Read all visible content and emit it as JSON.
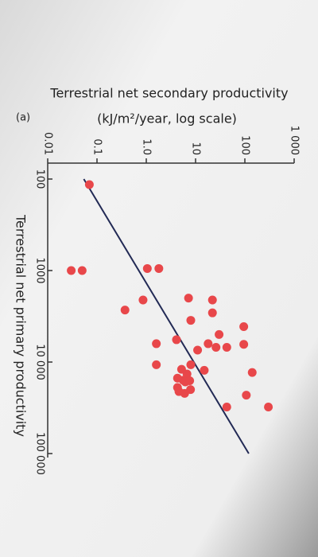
{
  "chart_data": {
    "type": "scatter",
    "panel_label": "(a)",
    "title": "Terrestrial net secondary productivity",
    "subtitle": "(kJ/m²/year, log scale)",
    "x_label": "Terrestrial net primary productivity",
    "x_log": true,
    "y_log": true,
    "color": "#e8474a",
    "xlim": [
      100,
      100000
    ],
    "ylim": [
      0.01,
      1000
    ],
    "xticks": [
      100,
      1000,
      {
        "value": 10000,
        "label": "10 000"
      },
      {
        "value": 100000,
        "label": "100 000"
      }
    ],
    "yticks": [
      0.01,
      0.1,
      {
        "value": 1,
        "label": "1.0"
      },
      10,
      100,
      {
        "value": 1000,
        "label": "1 000"
      }
    ],
    "x": [
      115,
      1000,
      1000,
      950,
      950,
      2100,
      2700,
      2000,
      2100,
      2900,
      3500,
      4100,
      6400,
      5000,
      6300,
      6900,
      6900,
      6300,
      10700,
      5700,
      7400,
      12300,
      10700,
      13000,
      13500,
      15800,
      19000,
      20000,
      22000,
      12000,
      15000,
      16500,
      16000,
      21000,
      23000,
      31000,
      31000
    ],
    "y": [
      0.07,
      0.03,
      0.05,
      1.05,
      1.8,
      0.86,
      0.37,
      7.2,
      22,
      22,
      8,
      95,
      95,
      30,
      18,
      26,
      43,
      1.6,
      1.6,
      4.1,
      11,
      15,
      8,
      141,
      6.7,
      5.6,
      4.3,
      7.9,
      6,
      5.2,
      4.3,
      6.2,
      7.6,
      4.6,
      107,
      300,
      43
    ],
    "fit_line": {
      "x": [
        100,
        100000
      ],
      "y": [
        0.054,
        120
      ]
    }
  }
}
